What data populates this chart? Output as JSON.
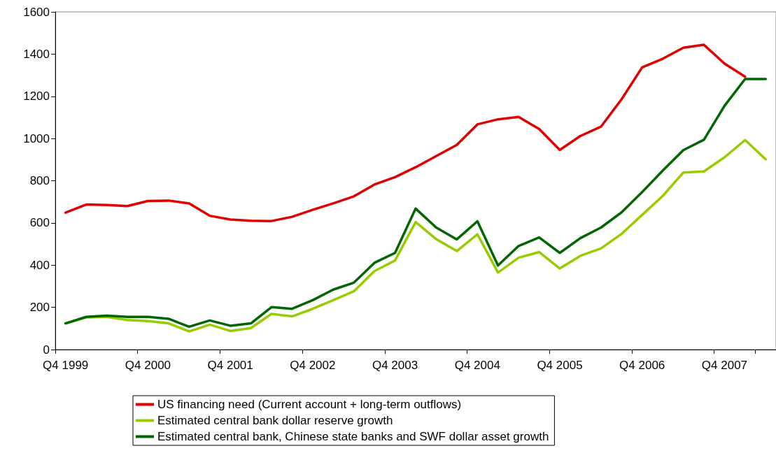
{
  "chart_data": {
    "type": "line",
    "categories": [
      "Q4 1999",
      null,
      null,
      null,
      "Q4 2000",
      null,
      null,
      null,
      "Q4 2001",
      null,
      null,
      null,
      "Q4 2002",
      null,
      null,
      null,
      "Q4 2003",
      null,
      null,
      null,
      "Q4 2004",
      null,
      null,
      null,
      "Q4 2005",
      null,
      null,
      null,
      "Q4 2006",
      null,
      null,
      null,
      "Q4 2007",
      null,
      null
    ],
    "ylim": [
      0,
      1600
    ],
    "yticks": [
      0,
      200,
      400,
      600,
      800,
      1000,
      1200,
      1400,
      1600
    ],
    "grid": false,
    "legend": "bottom",
    "marker": "none",
    "line_style": "solid",
    "series": [
      {
        "name": "US financing need (Current account + long-term outflows)",
        "color": "#e00000",
        "values": [
          649,
          687,
          685,
          680,
          704,
          706,
          692,
          634,
          616,
          610,
          609,
          629,
          662,
          693,
          726,
          782,
          817,
          864,
          917,
          970,
          1067,
          1091,
          1102,
          1045,
          946,
          1012,
          1056,
          1186,
          1337,
          1378,
          1430,
          1444,
          1355,
          1293,
          null
        ]
      },
      {
        "name": "Estimated central bank dollar reserve growth",
        "color": "#99cc00",
        "values": [
          124,
          152,
          155,
          140,
          135,
          124,
          86,
          118,
          88,
          102,
          169,
          157,
          193,
          234,
          276,
          372,
          422,
          604,
          523,
          467,
          546,
          365,
          435,
          462,
          384,
          444,
          479,
          548,
          638,
          728,
          839,
          844,
          911,
          993,
          901
        ]
      },
      {
        "name": "Estimated central bank, Chinese state banks and SWF dollar asset growth",
        "color": "#006600",
        "values": [
          124,
          155,
          161,
          155,
          155,
          146,
          108,
          138,
          113,
          124,
          201,
          193,
          234,
          284,
          317,
          411,
          458,
          668,
          578,
          522,
          608,
          398,
          491,
          531,
          458,
          528,
          578,
          650,
          746,
          848,
          945,
          994,
          1155,
          1282,
          1282
        ]
      }
    ]
  }
}
